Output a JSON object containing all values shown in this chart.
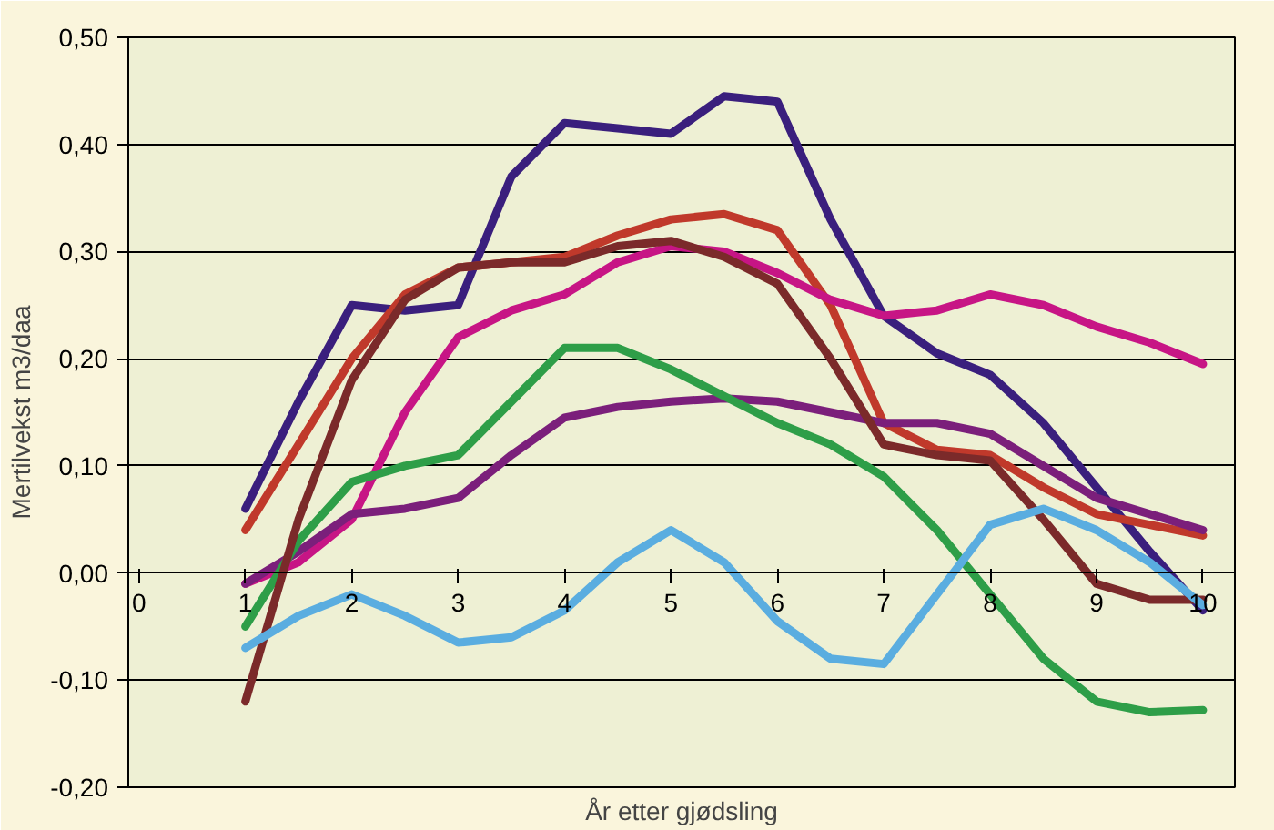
{
  "chart_data": {
    "type": "line",
    "xlabel": "År etter gjødsling",
    "ylabel": "Mertilvekst m3/daa",
    "x": [
      1,
      1.5,
      2,
      2.5,
      3,
      3.5,
      4,
      4.5,
      5,
      5.5,
      6,
      6.5,
      7,
      7.5,
      8,
      8.5,
      9,
      9.5,
      10
    ],
    "series": [
      {
        "color": "#3a1f7d",
        "values": [
          0.06,
          0.16,
          0.25,
          0.245,
          0.25,
          0.37,
          0.42,
          0.415,
          0.41,
          0.445,
          0.44,
          0.33,
          0.24,
          0.205,
          0.185,
          0.14,
          0.08,
          0.02,
          -0.035
        ]
      },
      {
        "color": "#c0392b",
        "values": [
          0.04,
          0.12,
          0.2,
          0.26,
          0.285,
          0.29,
          0.295,
          0.315,
          0.33,
          0.335,
          0.32,
          0.25,
          0.14,
          0.115,
          0.11,
          0.08,
          0.055,
          0.045,
          0.035
        ]
      },
      {
        "color": "#c71585",
        "values": [
          -0.01,
          0.01,
          0.05,
          0.15,
          0.22,
          0.245,
          0.26,
          0.29,
          0.305,
          0.3,
          0.28,
          0.255,
          0.24,
          0.245,
          0.26,
          0.25,
          0.23,
          0.215,
          0.195
        ]
      },
      {
        "color": "#7b1f7b",
        "values": [
          -0.01,
          0.02,
          0.055,
          0.06,
          0.07,
          0.11,
          0.145,
          0.155,
          0.16,
          0.163,
          0.16,
          0.15,
          0.14,
          0.14,
          0.13,
          0.1,
          0.07,
          0.055,
          0.04
        ]
      },
      {
        "color": "#2e9e48",
        "values": [
          -0.05,
          0.03,
          0.085,
          0.1,
          0.11,
          0.16,
          0.21,
          0.21,
          0.19,
          0.165,
          0.14,
          0.12,
          0.09,
          0.04,
          -0.02,
          -0.08,
          -0.12,
          -0.13,
          -0.128
        ]
      },
      {
        "color": "#7b2a2a",
        "values": [
          -0.12,
          0.05,
          0.18,
          0.255,
          0.285,
          0.29,
          0.29,
          0.305,
          0.31,
          0.295,
          0.27,
          0.2,
          0.12,
          0.11,
          0.105,
          0.05,
          -0.01,
          -0.025,
          -0.025
        ]
      },
      {
        "color": "#5aade0",
        "values": [
          -0.07,
          -0.04,
          -0.02,
          -0.04,
          -0.065,
          -0.06,
          -0.035,
          0.01,
          0.04,
          0.01,
          -0.045,
          -0.08,
          -0.085,
          -0.02,
          0.045,
          0.06,
          0.04,
          0.01,
          -0.03
        ]
      }
    ],
    "xlim": [
      -0.1,
      10.3
    ],
    "xticks": [
      0,
      1,
      2,
      3,
      4,
      5,
      6,
      7,
      8,
      9,
      10
    ],
    "ylim": [
      -0.2,
      0.5
    ],
    "yticks": [
      {
        "value": -0.2,
        "label": "-0,20"
      },
      {
        "value": -0.1,
        "label": "-0,10"
      },
      {
        "value": 0,
        "label": "0,00"
      },
      {
        "value": 0.1,
        "label": "0,10"
      },
      {
        "value": 0.2,
        "label": "0,20"
      },
      {
        "value": 0.3,
        "label": "0,30"
      },
      {
        "value": 0.4,
        "label": "0,40"
      },
      {
        "value": 0.5,
        "label": "0,50"
      }
    ],
    "grid": "y"
  }
}
